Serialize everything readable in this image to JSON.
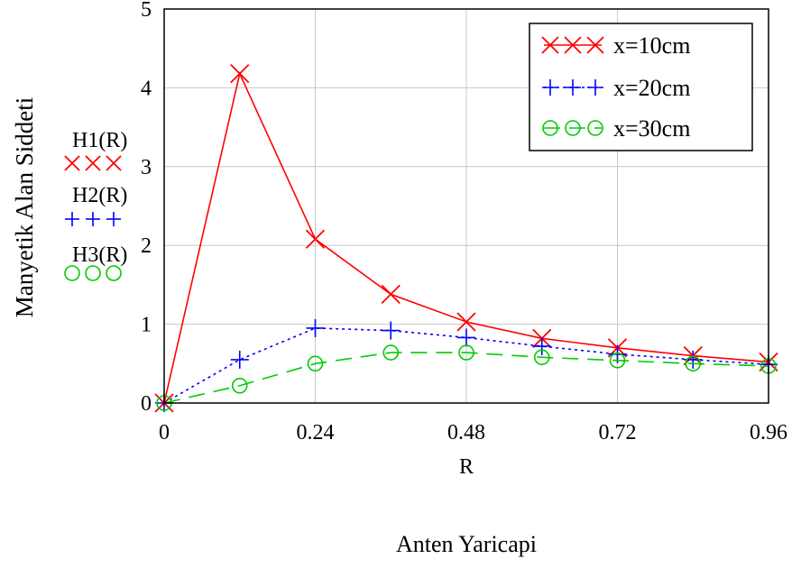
{
  "chart_data": {
    "type": "line",
    "title": "",
    "xlabel": "R",
    "xlabel2": "Anten Yaricapi",
    "ylabel": "Manyetik Alan Siddeti",
    "xlim": [
      0,
      0.96
    ],
    "ylim": [
      0,
      5
    ],
    "xticks": [
      "0",
      "0.24",
      "0.48",
      "0.72",
      "0.96"
    ],
    "yticks": [
      "0",
      "1",
      "2",
      "3",
      "4",
      "5"
    ],
    "xtick_values": [
      0,
      0.24,
      0.48,
      0.72,
      0.96
    ],
    "ytick_values": [
      0,
      1,
      2,
      3,
      4,
      5
    ],
    "grid": true,
    "legend_position": "top-right",
    "x": [
      0,
      0.12,
      0.24,
      0.36,
      0.48,
      0.6,
      0.72,
      0.84,
      0.96
    ],
    "series": [
      {
        "name": "x=10cm",
        "axis_label": "H1(R)",
        "color": "#ff0000",
        "marker": "x",
        "line_style": "solid",
        "values": [
          0,
          4.18,
          2.08,
          1.38,
          1.03,
          0.82,
          0.7,
          0.6,
          0.52
        ]
      },
      {
        "name": "x=20cm",
        "axis_label": "H2(R)",
        "color": "#0000ff",
        "marker": "+",
        "line_style": "dotted",
        "values": [
          0,
          0.55,
          0.95,
          0.92,
          0.83,
          0.72,
          0.62,
          0.55,
          0.49
        ]
      },
      {
        "name": "x=30cm",
        "axis_label": "H3(R)",
        "color": "#00cc00",
        "marker": "o",
        "line_style": "dashed",
        "values": [
          0,
          0.22,
          0.5,
          0.64,
          0.64,
          0.58,
          0.54,
          0.5,
          0.47
        ]
      }
    ]
  }
}
